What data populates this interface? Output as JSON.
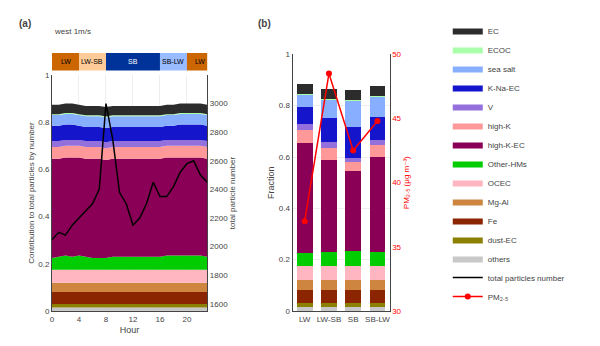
{
  "chart_data": [
    {
      "type": "area",
      "title": "(a)",
      "stacked": true,
      "x": [
        0,
        1,
        2,
        3,
        4,
        5,
        6,
        7,
        8,
        9,
        10,
        11,
        12,
        13,
        14,
        15,
        16,
        17,
        18,
        19,
        20,
        21,
        22,
        23
      ],
      "xlabel": "Hour",
      "ylabel": "Contribution to total particles by number",
      "y2label": "total particle number",
      "xlim": [
        0,
        23
      ],
      "xticks": [
        0,
        4,
        8,
        12,
        16,
        20
      ],
      "ylim": [
        0,
        1
      ],
      "yticks": [
        0,
        0.2,
        0.4,
        0.6,
        0.8,
        1
      ],
      "y2lim": [
        1550,
        3200
      ],
      "y2ticks": [
        1600,
        1800,
        2000,
        2200,
        2400,
        2600,
        2800,
        3000
      ],
      "legend": "right",
      "annotations": [
        "west 1m/s"
      ],
      "periods": {
        "boundaries": [
          0,
          4,
          8,
          16,
          20,
          24
        ],
        "labels": [
          "LW",
          "LW-SB",
          "SB",
          "SB-LW",
          "LW"
        ],
        "colors": [
          "#CC6600",
          "#FFCC99",
          "#003399",
          "#99BBFF",
          "#CC6600"
        ]
      },
      "series": [
        {
          "name": "others",
          "color": "#C8C8C8",
          "values": [
            0.015,
            0.015,
            0.015,
            0.015,
            0.015,
            0.015,
            0.015,
            0.015,
            0.015,
            0.015,
            0.015,
            0.015,
            0.015,
            0.015,
            0.015,
            0.015,
            0.015,
            0.015,
            0.015,
            0.015,
            0.015,
            0.015,
            0.015,
            0.015
          ]
        },
        {
          "name": "dust-EC",
          "color": "#8B8000",
          "values": [
            0.015,
            0.015,
            0.015,
            0.015,
            0.015,
            0.015,
            0.015,
            0.015,
            0.015,
            0.015,
            0.015,
            0.015,
            0.015,
            0.015,
            0.015,
            0.015,
            0.015,
            0.015,
            0.015,
            0.015,
            0.015,
            0.015,
            0.015,
            0.015
          ]
        },
        {
          "name": "Fe",
          "color": "#8B2500",
          "values": [
            0.05,
            0.05,
            0.05,
            0.05,
            0.05,
            0.05,
            0.05,
            0.05,
            0.05,
            0.05,
            0.05,
            0.05,
            0.05,
            0.05,
            0.05,
            0.05,
            0.05,
            0.05,
            0.05,
            0.05,
            0.05,
            0.05,
            0.05,
            0.05
          ]
        },
        {
          "name": "Mg-Al",
          "color": "#CD853F",
          "values": [
            0.04,
            0.04,
            0.04,
            0.04,
            0.04,
            0.04,
            0.04,
            0.04,
            0.04,
            0.04,
            0.04,
            0.04,
            0.04,
            0.04,
            0.04,
            0.04,
            0.04,
            0.04,
            0.04,
            0.04,
            0.04,
            0.04,
            0.04,
            0.04
          ]
        },
        {
          "name": "OCEC",
          "color": "#FFB6C1",
          "values": [
            0.055,
            0.055,
            0.055,
            0.055,
            0.055,
            0.055,
            0.055,
            0.055,
            0.055,
            0.055,
            0.055,
            0.055,
            0.055,
            0.055,
            0.055,
            0.055,
            0.055,
            0.055,
            0.055,
            0.055,
            0.055,
            0.055,
            0.055,
            0.055
          ]
        },
        {
          "name": "Other-HMs",
          "color": "#00CC00",
          "values": [
            0.05,
            0.055,
            0.06,
            0.055,
            0.06,
            0.055,
            0.05,
            0.05,
            0.05,
            0.055,
            0.055,
            0.055,
            0.055,
            0.055,
            0.055,
            0.055,
            0.055,
            0.06,
            0.06,
            0.06,
            0.06,
            0.06,
            0.06,
            0.055
          ]
        },
        {
          "name": "high-K-EC",
          "color": "#8B0057",
          "values": [
            0.42,
            0.415,
            0.415,
            0.42,
            0.415,
            0.415,
            0.42,
            0.42,
            0.415,
            0.415,
            0.415,
            0.415,
            0.415,
            0.415,
            0.415,
            0.415,
            0.415,
            0.415,
            0.415,
            0.415,
            0.415,
            0.415,
            0.415,
            0.415
          ]
        },
        {
          "name": "high-K",
          "color": "#FF9999",
          "values": [
            0.05,
            0.05,
            0.05,
            0.05,
            0.05,
            0.05,
            0.05,
            0.05,
            0.05,
            0.05,
            0.05,
            0.05,
            0.05,
            0.05,
            0.05,
            0.05,
            0.05,
            0.05,
            0.05,
            0.05,
            0.05,
            0.05,
            0.05,
            0.05
          ]
        },
        {
          "name": "V",
          "color": "#9370DB",
          "values": [
            0.025,
            0.025,
            0.025,
            0.025,
            0.025,
            0.025,
            0.025,
            0.025,
            0.025,
            0.025,
            0.025,
            0.025,
            0.025,
            0.025,
            0.025,
            0.025,
            0.025,
            0.025,
            0.025,
            0.025,
            0.025,
            0.025,
            0.025,
            0.025
          ]
        },
        {
          "name": "K-Na-EC",
          "color": "#1515CC",
          "values": [
            0.065,
            0.065,
            0.065,
            0.065,
            0.06,
            0.06,
            0.06,
            0.06,
            0.06,
            0.06,
            0.06,
            0.06,
            0.06,
            0.06,
            0.06,
            0.06,
            0.06,
            0.06,
            0.06,
            0.065,
            0.065,
            0.065,
            0.065,
            0.065
          ]
        },
        {
          "name": "sea salt",
          "color": "#87AEFF",
          "values": [
            0.045,
            0.045,
            0.045,
            0.045,
            0.045,
            0.045,
            0.045,
            0.045,
            0.045,
            0.045,
            0.045,
            0.045,
            0.045,
            0.045,
            0.045,
            0.045,
            0.045,
            0.045,
            0.045,
            0.045,
            0.045,
            0.045,
            0.045,
            0.045
          ]
        },
        {
          "name": "ECOC",
          "color": "#AAFFAA",
          "values": [
            0.004,
            0.004,
            0.004,
            0.004,
            0.004,
            0.004,
            0.004,
            0.004,
            0.004,
            0.004,
            0.004,
            0.004,
            0.004,
            0.004,
            0.004,
            0.004,
            0.004,
            0.004,
            0.004,
            0.004,
            0.004,
            0.004,
            0.004,
            0.004
          ]
        },
        {
          "name": "EC",
          "color": "#2C2C2C",
          "values": [
            0.04,
            0.04,
            0.04,
            0.04,
            0.04,
            0.04,
            0.04,
            0.04,
            0.04,
            0.04,
            0.04,
            0.04,
            0.04,
            0.04,
            0.04,
            0.04,
            0.04,
            0.04,
            0.04,
            0.04,
            0.04,
            0.04,
            0.04,
            0.04
          ]
        },
        {
          "name": "total particles number",
          "type": "line",
          "axis": "y2",
          "color": "black",
          "values": [
            2050,
            2100,
            2080,
            2150,
            2200,
            2250,
            2300,
            2400,
            3000,
            2750,
            2380,
            2300,
            2150,
            2200,
            2300,
            2450,
            2350,
            2350,
            2420,
            2520,
            2580,
            2600,
            2500,
            2450
          ]
        }
      ]
    },
    {
      "type": "bar",
      "title": "(b)",
      "stacked": true,
      "categories": [
        "LW",
        "LW-SB",
        "SB",
        "SB-LW"
      ],
      "ylabel": "Fraction",
      "y2label": "PM₂.₅ (μg m⁻³)",
      "ylim": [
        0,
        1
      ],
      "yticks": [
        0,
        0.2,
        0.4,
        0.6,
        0.8,
        1
      ],
      "y2lim": [
        30,
        50
      ],
      "y2ticks": [
        30,
        35,
        40,
        45,
        50
      ],
      "legend": "right",
      "series": [
        {
          "name": "others",
          "color": "#C8C8C8",
          "values": [
            0.015,
            0.015,
            0.015,
            0.015
          ]
        },
        {
          "name": "dust-EC",
          "color": "#8B8000",
          "values": [
            0.015,
            0.015,
            0.015,
            0.015
          ]
        },
        {
          "name": "Fe",
          "color": "#8B2500",
          "values": [
            0.05,
            0.05,
            0.05,
            0.05
          ]
        },
        {
          "name": "Mg-Al",
          "color": "#CD853F",
          "values": [
            0.04,
            0.04,
            0.04,
            0.04
          ]
        },
        {
          "name": "OCEC",
          "color": "#FFB6C1",
          "values": [
            0.055,
            0.055,
            0.055,
            0.055
          ]
        },
        {
          "name": "Other-HMs",
          "color": "#00CC00",
          "values": [
            0.05,
            0.055,
            0.06,
            0.055
          ]
        },
        {
          "name": "high-K-EC",
          "color": "#8B0057",
          "values": [
            0.43,
            0.36,
            0.31,
            0.37
          ]
        },
        {
          "name": "high-K",
          "color": "#FF9999",
          "values": [
            0.05,
            0.045,
            0.035,
            0.045
          ]
        },
        {
          "name": "V",
          "color": "#9370DB",
          "values": [
            0.025,
            0.022,
            0.018,
            0.022
          ]
        },
        {
          "name": "K-Na-EC",
          "color": "#1515CC",
          "values": [
            0.065,
            0.095,
            0.12,
            0.09
          ]
        },
        {
          "name": "sea salt",
          "color": "#87AEFF",
          "values": [
            0.045,
            0.07,
            0.1,
            0.075
          ]
        },
        {
          "name": "ECOC",
          "color": "#AAFFAA",
          "values": [
            0.004,
            0.004,
            0.004,
            0.004
          ]
        },
        {
          "name": "EC",
          "color": "#2C2C2C",
          "values": [
            0.04,
            0.04,
            0.04,
            0.04
          ]
        },
        {
          "name": "PM₂.₅",
          "type": "line",
          "marker": "circle",
          "axis": "y2",
          "color": "red",
          "values": [
            37.0,
            48.5,
            42.5,
            44.8
          ]
        }
      ]
    }
  ]
}
